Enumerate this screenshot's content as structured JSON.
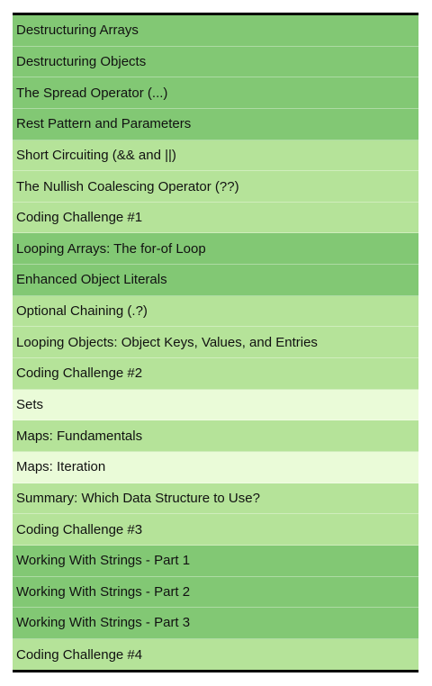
{
  "lessons": [
    {
      "label": "Destructuring Arrays",
      "shade": "dark"
    },
    {
      "label": "Destructuring Objects",
      "shade": "dark"
    },
    {
      "label": "The Spread Operator (...)",
      "shade": "dark"
    },
    {
      "label": "Rest Pattern and Parameters",
      "shade": "dark"
    },
    {
      "label": "Short Circuiting (&& and ||)",
      "shade": "mid"
    },
    {
      "label": "The Nullish Coalescing Operator (??)",
      "shade": "mid"
    },
    {
      "label": "Coding Challenge #1",
      "shade": "mid"
    },
    {
      "label": "Looping Arrays: The for-of Loop",
      "shade": "dark"
    },
    {
      "label": "Enhanced Object Literals",
      "shade": "dark"
    },
    {
      "label": "Optional Chaining (.?)",
      "shade": "mid"
    },
    {
      "label": "Looping Objects: Object Keys, Values, and Entries",
      "shade": "mid"
    },
    {
      "label": "Coding Challenge #2",
      "shade": "mid"
    },
    {
      "label": "Sets",
      "shade": "light"
    },
    {
      "label": "Maps: Fundamentals",
      "shade": "mid"
    },
    {
      "label": "Maps: Iteration",
      "shade": "light"
    },
    {
      "label": "Summary: Which Data Structure to Use?",
      "shade": "mid"
    },
    {
      "label": "Coding Challenge #3",
      "shade": "mid"
    },
    {
      "label": "Working With Strings - Part 1",
      "shade": "dark"
    },
    {
      "label": "Working With Strings - Part 2",
      "shade": "dark"
    },
    {
      "label": "Working With Strings - Part 3",
      "shade": "dark"
    },
    {
      "label": "Coding Challenge #4",
      "shade": "mid"
    }
  ],
  "colors": {
    "dark": "#82c874",
    "mid": "#b5e399",
    "light": "#eafbd8",
    "border": "#000000"
  }
}
